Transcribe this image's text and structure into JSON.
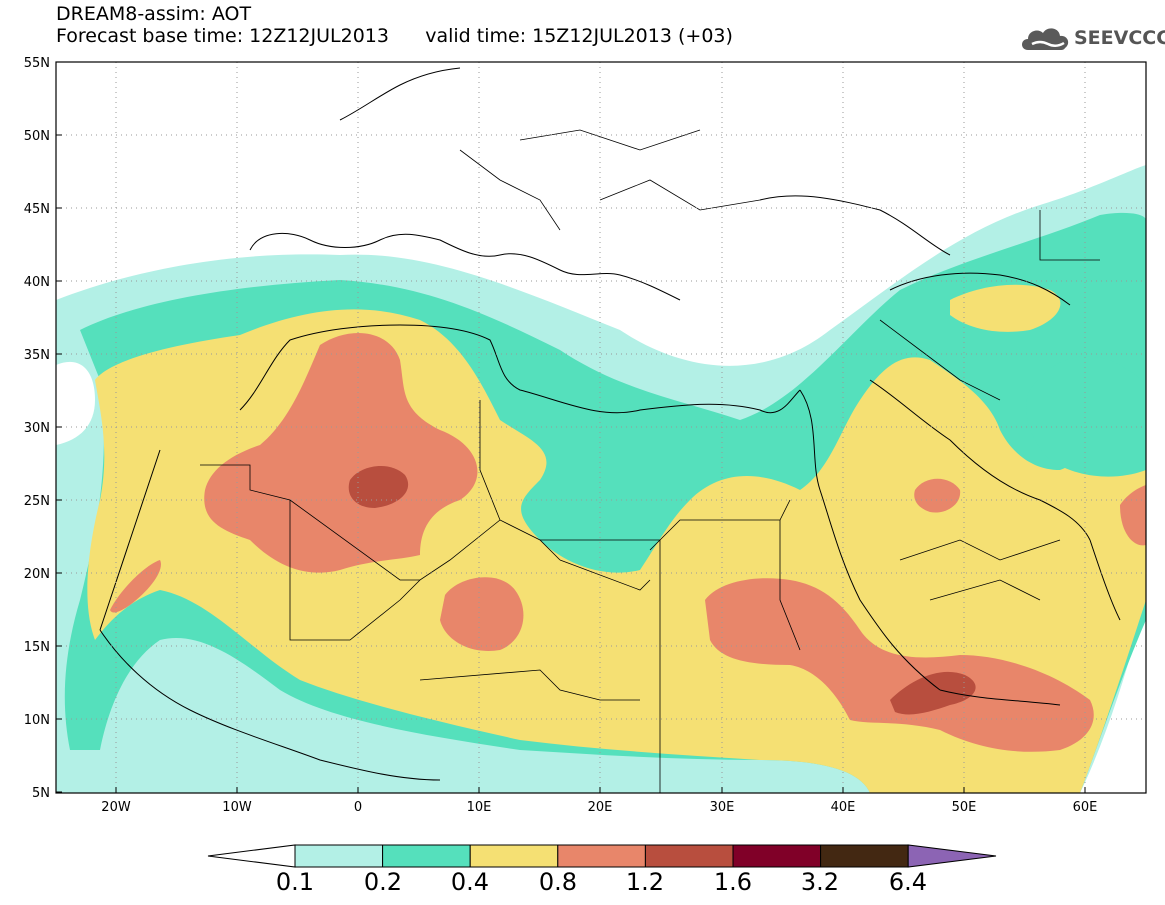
{
  "header": {
    "line1": "DREAM8-assim: AOT",
    "line2_left": "Forecast base time: 12Z12JUL2013",
    "line2_right": "valid time: 15Z12JUL2013 (+03)"
  },
  "logo": {
    "text": "SEEVCCC",
    "icon": "cloud-logo-icon"
  },
  "map": {
    "projection": "lat-lon",
    "lon_range": [
      -25,
      65
    ],
    "lat_range": [
      5,
      55
    ],
    "lat_ticks": [
      "55N",
      "50N",
      "45N",
      "40N",
      "35N",
      "30N",
      "25N",
      "20N",
      "15N",
      "10N",
      "5N"
    ],
    "lon_ticks": [
      "20W",
      "10W",
      "0",
      "10E",
      "20E",
      "30E",
      "40E",
      "50E",
      "60E"
    ]
  },
  "colorbar": {
    "labels": [
      "0.1",
      "0.2",
      "0.4",
      "0.8",
      "1.2",
      "1.6",
      "3.2",
      "6.4"
    ],
    "colors": [
      "#b3f0e6",
      "#55e0bc",
      "#f5e073",
      "#e8866a",
      "#b84e3e",
      "#800028",
      "#432812"
    ],
    "extend_low_color": "#ffffff",
    "extend_high_color": "#8c64b4"
  }
}
